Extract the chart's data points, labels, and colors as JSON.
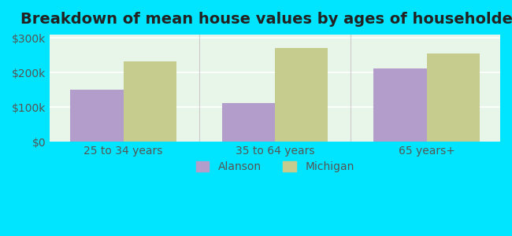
{
  "title": "Breakdown of mean house values by ages of householders",
  "categories": [
    "25 to 34 years",
    "35 to 64 years",
    "65 years+"
  ],
  "alanson_values": [
    150000,
    112000,
    213000
  ],
  "michigan_values": [
    232000,
    272000,
    255000
  ],
  "alanson_color": "#b39dca",
  "michigan_color": "#c5cc8e",
  "background_outer": "#00e5ff",
  "background_inner": "#e8f5e9",
  "ylim": [
    0,
    310000
  ],
  "yticks": [
    0,
    100000,
    200000,
    300000
  ],
  "ytick_labels": [
    "$0",
    "$100k",
    "$200k",
    "$300k"
  ],
  "legend_labels": [
    "Alanson",
    "Michigan"
  ],
  "title_fontsize": 14,
  "tick_fontsize": 10,
  "bar_width": 0.35,
  "grid_color": "#ffffff",
  "axis_color": "#cccccc"
}
